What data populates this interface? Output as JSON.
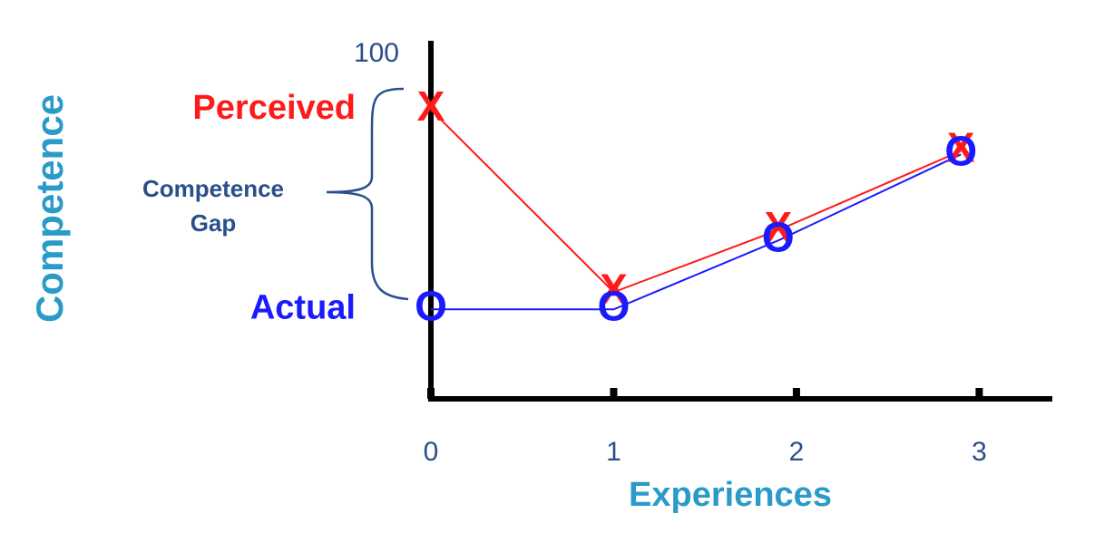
{
  "chart_data": {
    "type": "line",
    "x": [
      0,
      1,
      1.9,
      2.9
    ],
    "series": [
      {
        "name": "Perceived",
        "color": "#ff1a1a",
        "marker": "X",
        "values": [
          84,
          31,
          49,
          72
        ]
      },
      {
        "name": "Actual",
        "color": "#1a1aff",
        "marker": "O",
        "values": [
          26,
          26,
          46,
          71
        ]
      }
    ],
    "xlim": [
      0,
      3.4
    ],
    "xticks": [
      0,
      1,
      2,
      3
    ],
    "ylim": [
      0,
      104
    ],
    "yticks": [
      100
    ],
    "x_label": "Experiences",
    "y_label": "Competence",
    "annotations": [
      "Competence",
      "Gap"
    ]
  }
}
